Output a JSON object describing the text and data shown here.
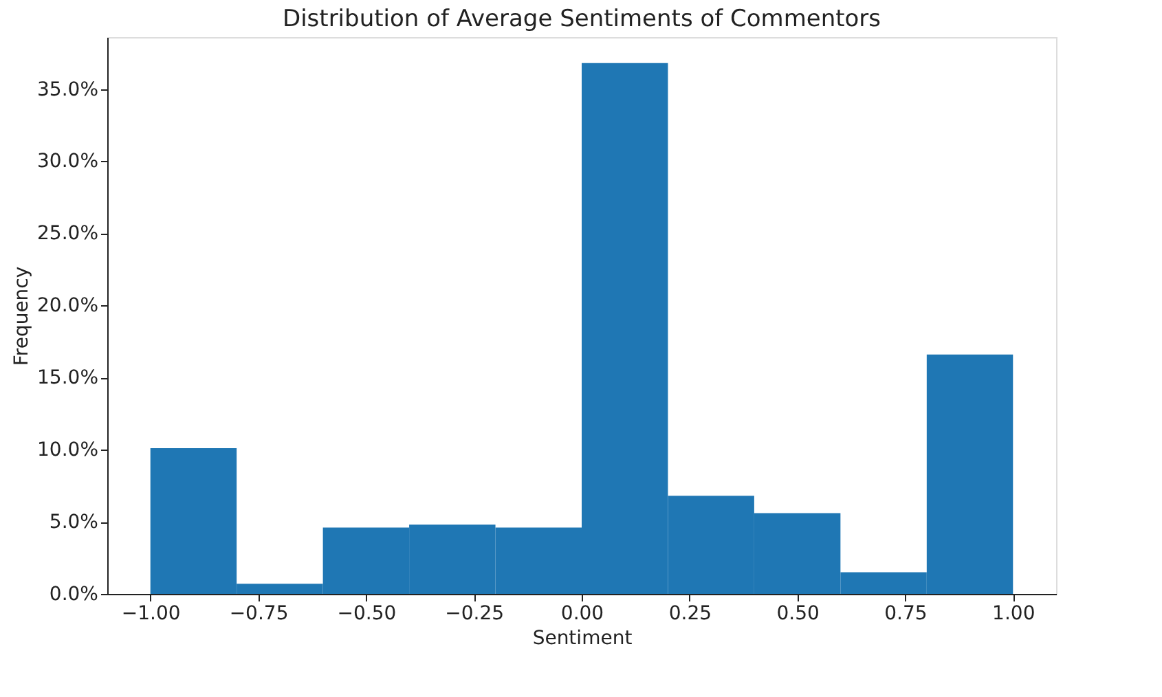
{
  "chart_data": {
    "type": "histogram",
    "title": "Distribution of Average Sentiments of Commentors",
    "xlabel": "Sentiment",
    "ylabel": "Frequency",
    "bins": [
      -1.0,
      -0.8,
      -0.6,
      -0.4,
      -0.2,
      0.0,
      0.2,
      0.4,
      0.6,
      0.8,
      1.0
    ],
    "values": [
      10.1,
      0.7,
      4.6,
      4.8,
      4.6,
      36.8,
      6.8,
      5.6,
      1.5,
      16.6
    ],
    "color": "#1f77b4",
    "xlim": [
      -1.1,
      1.1
    ],
    "ylim": [
      0,
      38.6
    ],
    "xticks": [
      {
        "value": -1.0,
        "label": "−1.00"
      },
      {
        "value": -0.75,
        "label": "−0.75"
      },
      {
        "value": -0.5,
        "label": "−0.50"
      },
      {
        "value": -0.25,
        "label": "−0.25"
      },
      {
        "value": 0.0,
        "label": "0.00"
      },
      {
        "value": 0.25,
        "label": "0.25"
      },
      {
        "value": 0.5,
        "label": "0.50"
      },
      {
        "value": 0.75,
        "label": "0.75"
      },
      {
        "value": 1.0,
        "label": "1.00"
      }
    ],
    "yticks": [
      {
        "value": 0,
        "label": "0.0%"
      },
      {
        "value": 5,
        "label": "5.0%"
      },
      {
        "value": 10,
        "label": "10.0%"
      },
      {
        "value": 15,
        "label": "15.0%"
      },
      {
        "value": 20,
        "label": "20.0%"
      },
      {
        "value": 25,
        "label": "25.0%"
      },
      {
        "value": 30,
        "label": "30.0%"
      },
      {
        "value": 35,
        "label": "35.0%"
      }
    ],
    "grid": false
  }
}
